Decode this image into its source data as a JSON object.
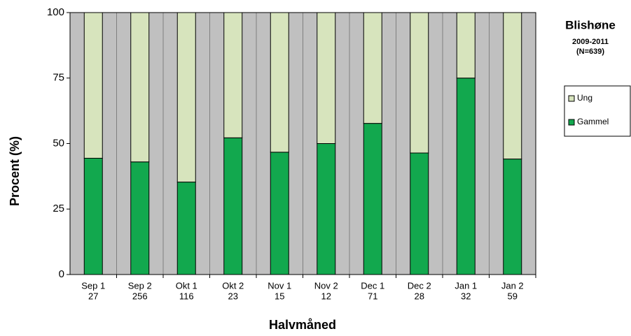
{
  "chart_data": {
    "type": "stacked_bar",
    "title": "Blishøne",
    "subtitle": "2009-2011",
    "note": "(N=639)",
    "x_label": "Halvmåned",
    "y_label": "Procent (%)",
    "categories": [
      "Sep 1",
      "Sep 2",
      "Okt 1",
      "Okt 2",
      "Nov 1",
      "Nov 2",
      "Dec 1",
      "Dec 2",
      "Jan 1",
      "Jan 2"
    ],
    "sample_sizes": [
      27,
      256,
      116,
      23,
      15,
      12,
      71,
      28,
      32,
      59
    ],
    "series": [
      {
        "name": "Gammel",
        "color": "#12a84e",
        "values": [
          44.4,
          43,
          35.3,
          52.2,
          46.7,
          50,
          57.7,
          46.4,
          75,
          44.1
        ]
      },
      {
        "name": "Ung",
        "color": "#d7e4bd",
        "values": [
          55.6,
          57,
          64.7,
          47.8,
          53.3,
          50,
          42.3,
          53.6,
          25,
          55.9
        ]
      }
    ],
    "ylim": [
      0,
      100
    ],
    "yticks": [
      0,
      25,
      50,
      75,
      100
    ],
    "legend": "right",
    "plot_background": "#c0c0c0"
  }
}
